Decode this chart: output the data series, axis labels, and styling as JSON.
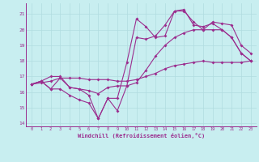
{
  "x": [
    0,
    1,
    2,
    3,
    4,
    5,
    6,
    7,
    8,
    9,
    10,
    11,
    12,
    13,
    14,
    15,
    16,
    17,
    18,
    19,
    20,
    21,
    22,
    23
  ],
  "line1": [
    16.5,
    16.6,
    16.7,
    16.9,
    16.9,
    16.9,
    16.8,
    16.8,
    16.8,
    16.7,
    16.7,
    16.8,
    17.0,
    17.2,
    17.5,
    17.7,
    17.8,
    17.9,
    18.0,
    17.9,
    17.9,
    17.9,
    17.9,
    18.0
  ],
  "line2": [
    16.5,
    16.7,
    16.2,
    16.9,
    16.3,
    16.2,
    16.1,
    15.9,
    16.3,
    16.4,
    16.4,
    16.6,
    17.4,
    18.3,
    19.0,
    19.5,
    19.8,
    20.0,
    20.0,
    20.0,
    20.0,
    19.5,
    18.5,
    18.0
  ],
  "line3": [
    16.5,
    16.7,
    17.0,
    17.0,
    16.3,
    16.2,
    15.8,
    14.3,
    15.6,
    14.8,
    16.4,
    19.5,
    19.4,
    19.6,
    20.3,
    21.2,
    21.2,
    20.5,
    20.0,
    20.5,
    20.4,
    20.3,
    19.0,
    18.5
  ],
  "line4": [
    16.5,
    16.7,
    16.2,
    16.2,
    15.8,
    15.5,
    15.3,
    14.3,
    15.6,
    15.6,
    17.9,
    20.7,
    20.2,
    19.5,
    19.6,
    21.2,
    21.3,
    20.3,
    20.2,
    20.4,
    20.0,
    19.5,
    18.5,
    18.0
  ],
  "line_color": "#9b2d8e",
  "bg_color": "#c8eef0",
  "grid_color": "#b0dce0",
  "ylim": [
    13.8,
    21.7
  ],
  "yticks": [
    14,
    15,
    16,
    17,
    18,
    19,
    20,
    21
  ],
  "xticks": [
    0,
    1,
    2,
    3,
    4,
    5,
    6,
    7,
    8,
    9,
    10,
    11,
    12,
    13,
    14,
    15,
    16,
    17,
    18,
    19,
    20,
    21,
    22,
    23
  ],
  "xlabel": "Windchill (Refroidissement éolien,°C)"
}
